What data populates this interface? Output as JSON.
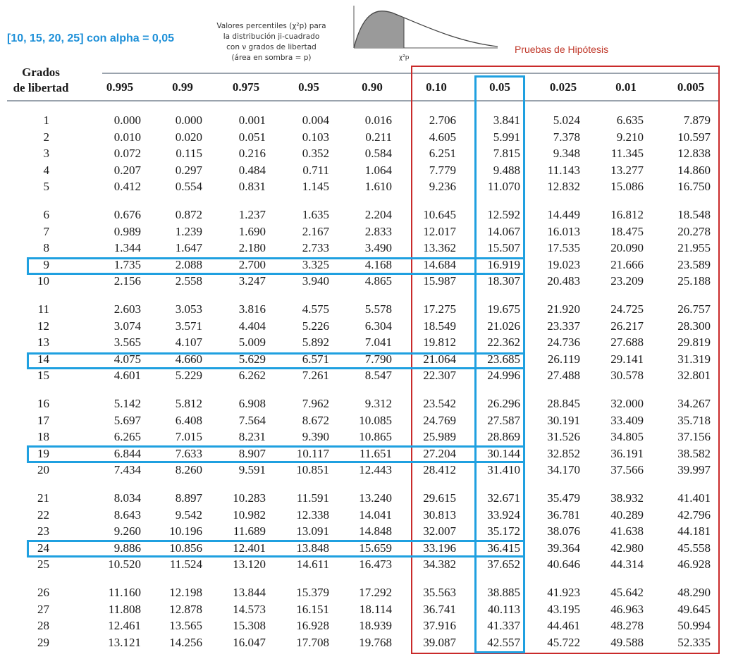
{
  "annotation": "[10, 15, 20, 25] con alpha = 0,05",
  "caption_lines": [
    "Valores percentiles (χ²p) para",
    "la distribución ji-cuadrado",
    "con ν grados de libertad",
    "(área en sombra = p)"
  ],
  "curve_label": "χ²p",
  "red_region_title": "Pruebas de Hipótesis",
  "df_header_line1": "Grados",
  "df_header_line2": "de libertad",
  "columns": [
    "0.995",
    "0.99",
    "0.975",
    "0.95",
    "0.90",
    "0.10",
    "0.05",
    "0.025",
    "0.01",
    "0.005"
  ],
  "rows": [
    {
      "df": "1",
      "v": [
        "0.000",
        "0.000",
        "0.001",
        "0.004",
        "0.016",
        "2.706",
        "3.841",
        "5.024",
        "6.635",
        "7.879"
      ]
    },
    {
      "df": "2",
      "v": [
        "0.010",
        "0.020",
        "0.051",
        "0.103",
        "0.211",
        "4.605",
        "5.991",
        "7.378",
        "9.210",
        "10.597"
      ]
    },
    {
      "df": "3",
      "v": [
        "0.072",
        "0.115",
        "0.216",
        "0.352",
        "0.584",
        "6.251",
        "7.815",
        "9.348",
        "11.345",
        "12.838"
      ]
    },
    {
      "df": "4",
      "v": [
        "0.207",
        "0.297",
        "0.484",
        "0.711",
        "1.064",
        "7.779",
        "9.488",
        "11.143",
        "13.277",
        "14.860"
      ]
    },
    {
      "df": "5",
      "v": [
        "0.412",
        "0.554",
        "0.831",
        "1.145",
        "1.610",
        "9.236",
        "11.070",
        "12.832",
        "15.086",
        "16.750"
      ]
    },
    {
      "df": "6",
      "v": [
        "0.676",
        "0.872",
        "1.237",
        "1.635",
        "2.204",
        "10.645",
        "12.592",
        "14.449",
        "16.812",
        "18.548"
      ]
    },
    {
      "df": "7",
      "v": [
        "0.989",
        "1.239",
        "1.690",
        "2.167",
        "2.833",
        "12.017",
        "14.067",
        "16.013",
        "18.475",
        "20.278"
      ]
    },
    {
      "df": "8",
      "v": [
        "1.344",
        "1.647",
        "2.180",
        "2.733",
        "3.490",
        "13.362",
        "15.507",
        "17.535",
        "20.090",
        "21.955"
      ]
    },
    {
      "df": "9",
      "v": [
        "1.735",
        "2.088",
        "2.700",
        "3.325",
        "4.168",
        "14.684",
        "16.919",
        "19.023",
        "21.666",
        "23.589"
      ]
    },
    {
      "df": "10",
      "v": [
        "2.156",
        "2.558",
        "3.247",
        "3.940",
        "4.865",
        "15.987",
        "18.307",
        "20.483",
        "23.209",
        "25.188"
      ]
    },
    {
      "df": "11",
      "v": [
        "2.603",
        "3.053",
        "3.816",
        "4.575",
        "5.578",
        "17.275",
        "19.675",
        "21.920",
        "24.725",
        "26.757"
      ]
    },
    {
      "df": "12",
      "v": [
        "3.074",
        "3.571",
        "4.404",
        "5.226",
        "6.304",
        "18.549",
        "21.026",
        "23.337",
        "26.217",
        "28.300"
      ]
    },
    {
      "df": "13",
      "v": [
        "3.565",
        "4.107",
        "5.009",
        "5.892",
        "7.041",
        "19.812",
        "22.362",
        "24.736",
        "27.688",
        "29.819"
      ]
    },
    {
      "df": "14",
      "v": [
        "4.075",
        "4.660",
        "5.629",
        "6.571",
        "7.790",
        "21.064",
        "23.685",
        "26.119",
        "29.141",
        "31.319"
      ]
    },
    {
      "df": "15",
      "v": [
        "4.601",
        "5.229",
        "6.262",
        "7.261",
        "8.547",
        "22.307",
        "24.996",
        "27.488",
        "30.578",
        "32.801"
      ]
    },
    {
      "df": "16",
      "v": [
        "5.142",
        "5.812",
        "6.908",
        "7.962",
        "9.312",
        "23.542",
        "26.296",
        "28.845",
        "32.000",
        "34.267"
      ]
    },
    {
      "df": "17",
      "v": [
        "5.697",
        "6.408",
        "7.564",
        "8.672",
        "10.085",
        "24.769",
        "27.587",
        "30.191",
        "33.409",
        "35.718"
      ]
    },
    {
      "df": "18",
      "v": [
        "6.265",
        "7.015",
        "8.231",
        "9.390",
        "10.865",
        "25.989",
        "28.869",
        "31.526",
        "34.805",
        "37.156"
      ]
    },
    {
      "df": "19",
      "v": [
        "6.844",
        "7.633",
        "8.907",
        "10.117",
        "11.651",
        "27.204",
        "30.144",
        "32.852",
        "36.191",
        "38.582"
      ]
    },
    {
      "df": "20",
      "v": [
        "7.434",
        "8.260",
        "9.591",
        "10.851",
        "12.443",
        "28.412",
        "31.410",
        "34.170",
        "37.566",
        "39.997"
      ]
    },
    {
      "df": "21",
      "v": [
        "8.034",
        "8.897",
        "10.283",
        "11.591",
        "13.240",
        "29.615",
        "32.671",
        "35.479",
        "38.932",
        "41.401"
      ]
    },
    {
      "df": "22",
      "v": [
        "8.643",
        "9.542",
        "10.982",
        "12.338",
        "14.041",
        "30.813",
        "33.924",
        "36.781",
        "40.289",
        "42.796"
      ]
    },
    {
      "df": "23",
      "v": [
        "9.260",
        "10.196",
        "11.689",
        "13.091",
        "14.848",
        "32.007",
        "35.172",
        "38.076",
        "41.638",
        "44.181"
      ]
    },
    {
      "df": "24",
      "v": [
        "9.886",
        "10.856",
        "12.401",
        "13.848",
        "15.659",
        "33.196",
        "36.415",
        "39.364",
        "42.980",
        "45.558"
      ]
    },
    {
      "df": "25",
      "v": [
        "10.520",
        "11.524",
        "13.120",
        "14.611",
        "16.473",
        "34.382",
        "37.652",
        "40.646",
        "44.314",
        "46.928"
      ]
    },
    {
      "df": "26",
      "v": [
        "11.160",
        "12.198",
        "13.844",
        "15.379",
        "17.292",
        "35.563",
        "38.885",
        "41.923",
        "45.642",
        "48.290"
      ]
    },
    {
      "df": "27",
      "v": [
        "11.808",
        "12.878",
        "14.573",
        "16.151",
        "18.114",
        "36.741",
        "40.113",
        "43.195",
        "46.963",
        "49.645"
      ]
    },
    {
      "df": "28",
      "v": [
        "12.461",
        "13.565",
        "15.308",
        "16.928",
        "18.939",
        "37.916",
        "41.337",
        "44.461",
        "48.278",
        "50.994"
      ]
    },
    {
      "df": "29",
      "v": [
        "13.121",
        "14.256",
        "16.047",
        "17.708",
        "19.768",
        "39.087",
        "42.557",
        "45.722",
        "49.588",
        "52.335"
      ]
    }
  ],
  "highlighted_rows": [
    "9",
    "14",
    "19",
    "24"
  ],
  "highlighted_column": "0.05",
  "colors": {
    "highlight_blue": "#1fa0e0",
    "region_red": "#c92a2a"
  }
}
